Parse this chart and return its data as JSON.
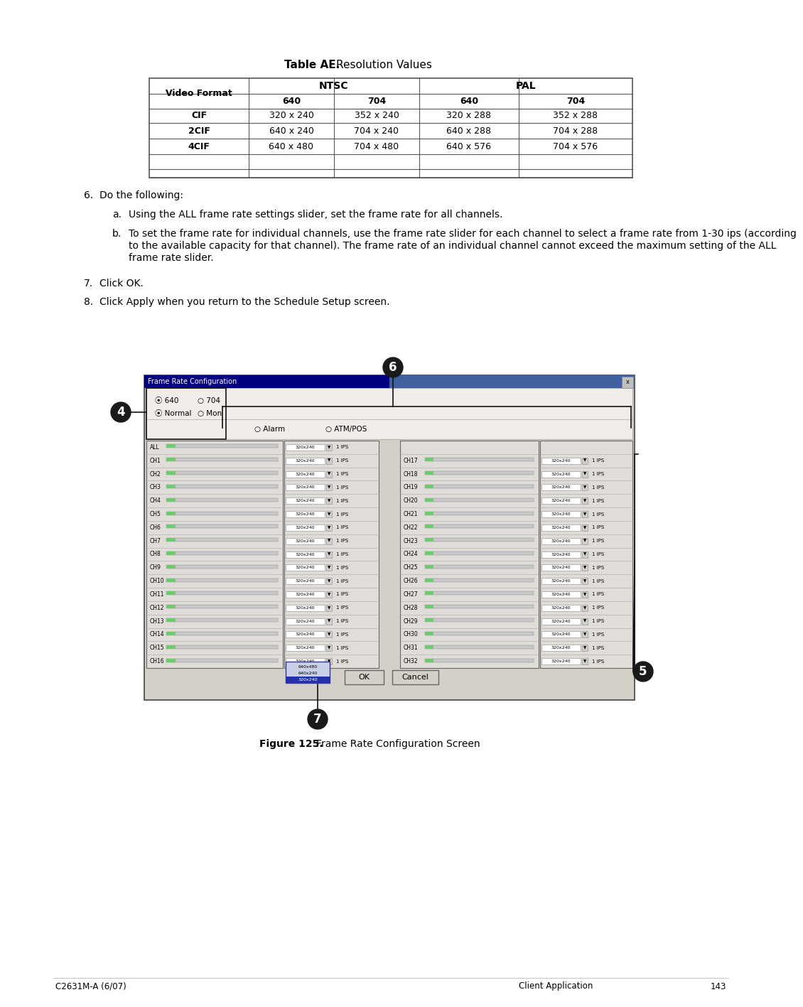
{
  "title_bold": "Table AE.",
  "title_regular": "  Resolution Values",
  "table_headers_top": [
    "",
    "NTSC",
    "PAL"
  ],
  "table_headers_sub": [
    "Video Format",
    "640",
    "704",
    "640",
    "704"
  ],
  "table_rows": [
    [
      "CIF",
      "320 x 240",
      "352 x 240",
      "320 x 288",
      "352 x 288"
    ],
    [
      "2CIF",
      "640 x 240",
      "704 x 240",
      "640 x 288",
      "704 x 288"
    ],
    [
      "4CIF",
      "640 x 480",
      "704 x 480",
      "640 x 576",
      "704 x 576"
    ]
  ],
  "step6_text": "Do the following:",
  "step6a_text": "Using the ALL frame rate settings slider, set the frame rate for all channels.",
  "step6b_line1": "To set the frame rate for individual channels, use the frame rate slider for each channel to select a frame rate from 1-30 ips (according",
  "step6b_line2": "to the available capacity for that channel). The frame rate of an individual channel cannot exceed the maximum setting of the ALL",
  "step6b_line3": "frame rate slider.",
  "step7_text": "Click OK.",
  "step8_text": "Click Apply when you return to the Schedule Setup screen.",
  "figure_caption_bold": "Figure 125.",
  "figure_caption_regular": "  Frame Rate Configuration Screen",
  "footer_left": "C2631M-A (6/07)",
  "footer_right": "Client Application",
  "footer_page": "143",
  "bg_color": "#ffffff",
  "text_color": "#000000",
  "dlg_gray": "#d4d0c8",
  "dlg_border": "#444444",
  "panel_bg": "#e8e8e8",
  "slider_green": "#4caf50",
  "title_bar_left": "#000080",
  "title_bar_right": "#4080c0"
}
